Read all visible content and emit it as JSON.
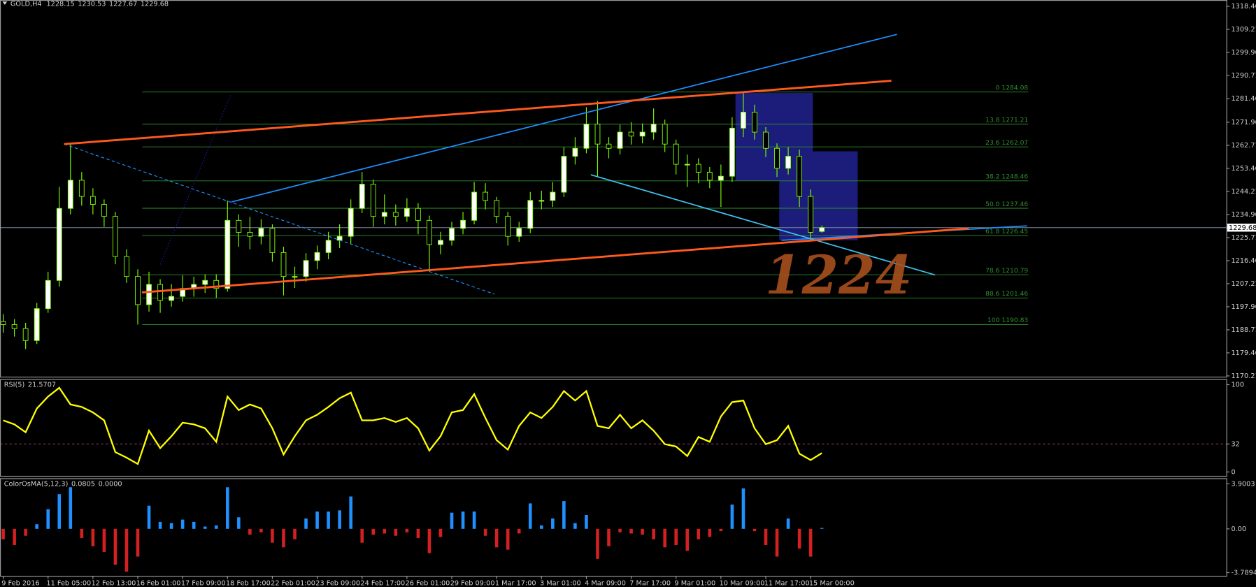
{
  "chart_data": [
    {
      "type": "candlestick",
      "symbol": "GOLD,H4",
      "categories": [
        "9 Feb 2016",
        null,
        null,
        null,
        "11 Feb 05:00",
        null,
        null,
        null,
        "12 Feb 13:00",
        null,
        null,
        null,
        "16 Feb 01:00",
        null,
        null,
        null,
        "17 Feb 09:00",
        null,
        null,
        null,
        "18 Feb 17:00",
        null,
        null,
        null,
        "22 Feb 01:00",
        null,
        null,
        null,
        "23 Feb 09:00",
        null,
        null,
        null,
        "24 Feb 17:00",
        null,
        null,
        null,
        "26 Feb 01:00",
        null,
        null,
        null,
        "29 Feb 09:00",
        null,
        null,
        null,
        "1 Mar 17:00",
        null,
        null,
        null,
        "3 Mar 01:00",
        null,
        null,
        null,
        "4 Mar 09:00",
        null,
        null,
        null,
        "7 Mar 17:00",
        null,
        null,
        null,
        "9 Mar 01:00",
        null,
        null,
        null,
        "10 Mar 09:00",
        null,
        null,
        null,
        "11 Mar 17:00",
        null,
        null,
        null,
        "15 Mar 00:00",
        null
      ],
      "ohlc": [
        [
          1192.0,
          1195.0,
          1187.5,
          1190.8
        ],
        [
          1190.8,
          1193.0,
          1186.0,
          1189.2
        ],
        [
          1189.2,
          1191.5,
          1181.0,
          1184.4
        ],
        [
          1184.4,
          1199.5,
          1183.0,
          1197.2
        ],
        [
          1197.2,
          1212.0,
          1195.5,
          1208.5
        ],
        [
          1208.5,
          1246.0,
          1206.0,
          1237.4
        ],
        [
          1237.4,
          1263.4,
          1235.0,
          1248.7
        ],
        [
          1248.7,
          1252.0,
          1238.5,
          1242.2
        ],
        [
          1242.2,
          1245.5,
          1235.0,
          1239.0
        ],
        [
          1239.0,
          1241.0,
          1230.0,
          1234.2
        ],
        [
          1234.2,
          1236.0,
          1215.0,
          1218.1
        ],
        [
          1218.1,
          1221.0,
          1207.5,
          1210.1
        ],
        [
          1210.1,
          1213.0,
          1190.8,
          1198.8
        ],
        [
          1198.8,
          1212.0,
          1196.0,
          1206.9
        ],
        [
          1206.9,
          1209.0,
          1195.5,
          1200.5
        ],
        [
          1200.5,
          1207.0,
          1198.0,
          1202.1
        ],
        [
          1202.1,
          1210.5,
          1200.0,
          1205.3
        ],
        [
          1205.3,
          1210.0,
          1202.0,
          1206.9
        ],
        [
          1206.9,
          1211.0,
          1203.5,
          1208.5
        ],
        [
          1208.5,
          1211.0,
          1201.5,
          1205.3
        ],
        [
          1205.3,
          1240.5,
          1204.0,
          1232.6
        ],
        [
          1232.6,
          1235.0,
          1222.0,
          1227.8
        ],
        [
          1227.8,
          1234.0,
          1221.0,
          1226.2
        ],
        [
          1226.2,
          1233.0,
          1223.0,
          1229.4
        ],
        [
          1229.4,
          1231.0,
          1216.0,
          1219.7
        ],
        [
          1219.7,
          1222.0,
          1202.5,
          1210.1
        ],
        [
          1210.1,
          1214.0,
          1205.5,
          1210.1
        ],
        [
          1210.1,
          1219.5,
          1208.0,
          1216.5
        ],
        [
          1216.5,
          1222.5,
          1213.0,
          1219.7
        ],
        [
          1219.7,
          1228.0,
          1217.0,
          1224.6
        ],
        [
          1224.6,
          1231.0,
          1221.5,
          1226.2
        ],
        [
          1226.2,
          1241.0,
          1223.0,
          1237.4
        ],
        [
          1237.4,
          1252.0,
          1235.5,
          1247.1
        ],
        [
          1247.1,
          1249.0,
          1230.0,
          1234.2
        ],
        [
          1234.2,
          1243.0,
          1231.0,
          1235.8
        ],
        [
          1235.8,
          1239.0,
          1230.5,
          1234.2
        ],
        [
          1234.2,
          1241.5,
          1232.0,
          1237.4
        ],
        [
          1237.4,
          1239.5,
          1227.0,
          1232.6
        ],
        [
          1232.6,
          1234.5,
          1212.0,
          1222.9
        ],
        [
          1222.9,
          1228.0,
          1219.0,
          1224.6
        ],
        [
          1224.6,
          1232.0,
          1222.5,
          1229.4
        ],
        [
          1229.4,
          1236.0,
          1227.0,
          1232.6
        ],
        [
          1232.6,
          1248.0,
          1231.0,
          1243.9
        ],
        [
          1243.9,
          1247.5,
          1237.0,
          1240.6
        ],
        [
          1240.6,
          1242.0,
          1231.5,
          1234.2
        ],
        [
          1234.2,
          1236.0,
          1222.5,
          1226.2
        ],
        [
          1226.2,
          1232.0,
          1224.0,
          1229.4
        ],
        [
          1229.4,
          1244.0,
          1227.5,
          1240.6
        ],
        [
          1240.6,
          1244.5,
          1237.0,
          1240.6
        ],
        [
          1240.6,
          1248.0,
          1238.0,
          1243.9
        ],
        [
          1243.9,
          1262.0,
          1242.0,
          1258.3
        ],
        [
          1258.3,
          1266.0,
          1255.0,
          1261.5
        ],
        [
          1261.5,
          1278.0,
          1259.5,
          1271.2
        ],
        [
          1271.2,
          1280.5,
          1250.0,
          1263.2
        ],
        [
          1263.2,
          1266.0,
          1257.5,
          1261.5
        ],
        [
          1261.5,
          1271.0,
          1259.0,
          1268.0
        ],
        [
          1268.0,
          1272.0,
          1263.0,
          1266.4
        ],
        [
          1266.4,
          1271.5,
          1263.5,
          1268.0
        ],
        [
          1268.0,
          1277.5,
          1265.0,
          1271.2
        ],
        [
          1271.2,
          1273.0,
          1260.0,
          1263.2
        ],
        [
          1263.2,
          1265.0,
          1251.0,
          1255.1
        ],
        [
          1255.1,
          1259.0,
          1246.0,
          1255.1
        ],
        [
          1255.1,
          1257.5,
          1247.5,
          1251.9
        ],
        [
          1251.9,
          1254.0,
          1245.5,
          1248.7
        ],
        [
          1248.7,
          1255.0,
          1238.0,
          1250.3
        ],
        [
          1250.3,
          1274.0,
          1248.0,
          1269.6
        ],
        [
          1269.6,
          1284.1,
          1266.0,
          1276.0
        ],
        [
          1276.0,
          1279.0,
          1265.0,
          1268.0
        ],
        [
          1268.0,
          1270.0,
          1258.0,
          1261.5
        ],
        [
          1261.5,
          1263.5,
          1250.0,
          1253.5
        ],
        [
          1253.5,
          1262.0,
          1251.0,
          1258.3
        ],
        [
          1258.3,
          1261.0,
          1238.0,
          1242.2
        ],
        [
          1242.2,
          1245.0,
          1224.5,
          1227.8
        ],
        [
          1228.15,
          1230.53,
          1227.67,
          1229.68
        ]
      ],
      "up_color": "#ffffff",
      "down_color": "#000000",
      "candle_line_color": "#7cfc00",
      "ylim": [
        1169.9,
        1321.0
      ],
      "yticks": [
        1318.46,
        1309.21,
        1299.96,
        1290.71,
        1281.46,
        1271.96,
        1262.71,
        1253.46,
        1244.21,
        1234.96,
        1225.71,
        1216.46,
        1207.21,
        1197.96,
        1188.71,
        1179.46,
        1170.21
      ],
      "fib": {
        "from": 12.4,
        "to": 91.4,
        "color": "#2f8f2f",
        "levels": [
          {
            "label": "0 1284.08",
            "price": 1284.08
          },
          {
            "label": "13.8 1271.21",
            "price": 1271.21
          },
          {
            "label": "23.6 1262.07",
            "price": 1262.07
          },
          {
            "label": "38.2 1248.46",
            "price": 1248.46
          },
          {
            "label": "50.0 1237.46",
            "price": 1237.46
          },
          {
            "label": "61.8 1226.45",
            "price": 1226.45
          },
          {
            "label": "78.6 1210.79",
            "price": 1210.79
          },
          {
            "label": "88.6 1201.46",
            "price": 1201.46
          },
          {
            "label": "100 1190.83",
            "price": 1190.83
          }
        ]
      },
      "rectangles": [
        {
          "color": "#1c1c7a",
          "from": [
            65.3,
            1283.7
          ],
          "to": [
            72.2,
            1248.4
          ]
        },
        {
          "color": "#1c1c7a",
          "from": [
            69.2,
            1260.3
          ],
          "to": [
            76.2,
            1224.6
          ]
        }
      ],
      "trendlines": [
        {
          "color": "#1e90ff",
          "width": 1.5,
          "style": "solid",
          "points": [
            [
              20.36,
              1240.0
            ],
            [
              79.7,
              1307.2
            ]
          ]
        },
        {
          "color": "#1e90ff",
          "width": 1.5,
          "style": "solid",
          "points": [
            [
              69.4,
              1224.6
            ],
            [
              91.3,
              1230.4
            ]
          ]
        },
        {
          "color": "#40c0f0",
          "width": 1.5,
          "style": "solid",
          "points": [
            [
              52.4,
              1250.9
            ],
            [
              83.1,
              1210.7
            ]
          ]
        },
        {
          "color": "#1e90ff",
          "width": 1,
          "style": "dashed",
          "points": [
            [
              5.43,
              1263.2
            ],
            [
              43.8,
              1203.0
            ]
          ]
        },
        {
          "color": "#1a1aa0",
          "width": 1,
          "style": "dotted",
          "points": [
            [
              14,
              1214.9
            ],
            [
              20.3,
              1283.1
            ]
          ]
        },
        {
          "color": "#ff5a1f",
          "width": 2.5,
          "style": "solid",
          "points": [
            [
              5.43,
              1263.2
            ],
            [
              79.2,
              1288.6
            ]
          ]
        },
        {
          "color": "#ff5a1f",
          "width": 2.5,
          "style": "solid",
          "points": [
            [
              12.36,
              1203.7
            ],
            [
              86.1,
              1229.4
            ]
          ]
        }
      ],
      "annotation": "1224",
      "annotation_color": "#a8501e"
    },
    {
      "type": "line",
      "title": "RSI(5)",
      "color": "#ffff00",
      "values": [
        59.1,
        54.5,
        45.5,
        72.7,
        86.4,
        96.4,
        77.3,
        74.5,
        68.2,
        59.1,
        22.7,
        16.4,
        9.1,
        47.3,
        27.3,
        40.9,
        56.4,
        54.5,
        50,
        34.5,
        86.4,
        70.9,
        77.3,
        72.7,
        50,
        20,
        40.9,
        59.1,
        65.5,
        74.5,
        84.5,
        90.9,
        59.1,
        59.1,
        61.8,
        57.3,
        61.8,
        50,
        24.5,
        40.9,
        68.2,
        70.9,
        89.1,
        61.8,
        36.4,
        25.5,
        52.7,
        68.2,
        61.8,
        74.5,
        92.7,
        81.8,
        92.7,
        52.7,
        50,
        65.5,
        50,
        59.1,
        47.3,
        31.8,
        29.1,
        18.2,
        40,
        34.5,
        63.6,
        80,
        81.8,
        50,
        31.8,
        36.4,
        52.7,
        20.9,
        13.6,
        21.5707
      ],
      "ylim": [
        -4.5,
        105.5
      ],
      "yticks": [
        100,
        32,
        0
      ]
    },
    {
      "type": "histogram",
      "title": "ColorOsMA(5,12,3)",
      "signal": "0.0000",
      "up_color": "#1e90ff",
      "down_color": "#d42020",
      "values": [
        -0.9,
        -1.4,
        -0.6,
        0.4,
        1.7,
        3.0,
        3.6,
        -0.8,
        -1.5,
        -2.0,
        -3.1,
        -3.7,
        -2.4,
        2.0,
        0.6,
        0.5,
        0.8,
        0.6,
        0.2,
        0.3,
        3.6,
        1.0,
        -0.5,
        -0.3,
        -1.2,
        -1.6,
        -0.9,
        0.9,
        1.5,
        1.5,
        1.6,
        2.8,
        -1.2,
        -0.5,
        -0.4,
        -0.6,
        -0.3,
        -0.8,
        -2.1,
        -0.7,
        1.4,
        1.5,
        1.5,
        -0.6,
        -1.6,
        -1.8,
        -0.4,
        2.2,
        0.3,
        0.9,
        2.4,
        0.5,
        1.2,
        -2.6,
        -1.5,
        -0.3,
        -0.4,
        -0.5,
        -0.9,
        -1.6,
        -1.4,
        -1.9,
        -0.9,
        -0.7,
        -0.2,
        2.1,
        3.5,
        -0.2,
        -1.4,
        -2.4,
        0.9,
        -1.7,
        -2.4,
        0.0805
      ],
      "ylim": [
        -4.06,
        4.31
      ],
      "yticks": [
        3.9003,
        {
          "value": 0,
          "label": "0.00"
        },
        -3.7894
      ]
    }
  ]
}
